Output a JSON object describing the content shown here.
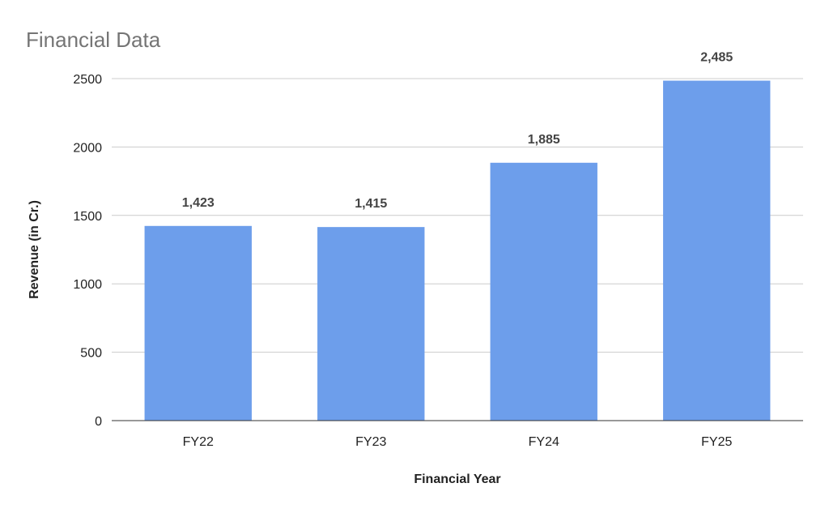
{
  "chart_data": {
    "type": "bar",
    "title": "Financial Data",
    "xlabel": "Financial Year",
    "ylabel": "Revenue (in Cr.)",
    "categories": [
      "FY22",
      "FY23",
      "FY24",
      "FY25"
    ],
    "values": [
      1423,
      1415,
      1885,
      2485
    ],
    "value_labels": [
      "1,423",
      "1,415",
      "1,885",
      "2,485"
    ],
    "ylim": [
      0,
      2500
    ],
    "yticks": [
      0,
      500,
      1000,
      1500,
      2000,
      2500
    ],
    "grid": true,
    "legend": "none",
    "bar_color": "#6d9eeb"
  }
}
